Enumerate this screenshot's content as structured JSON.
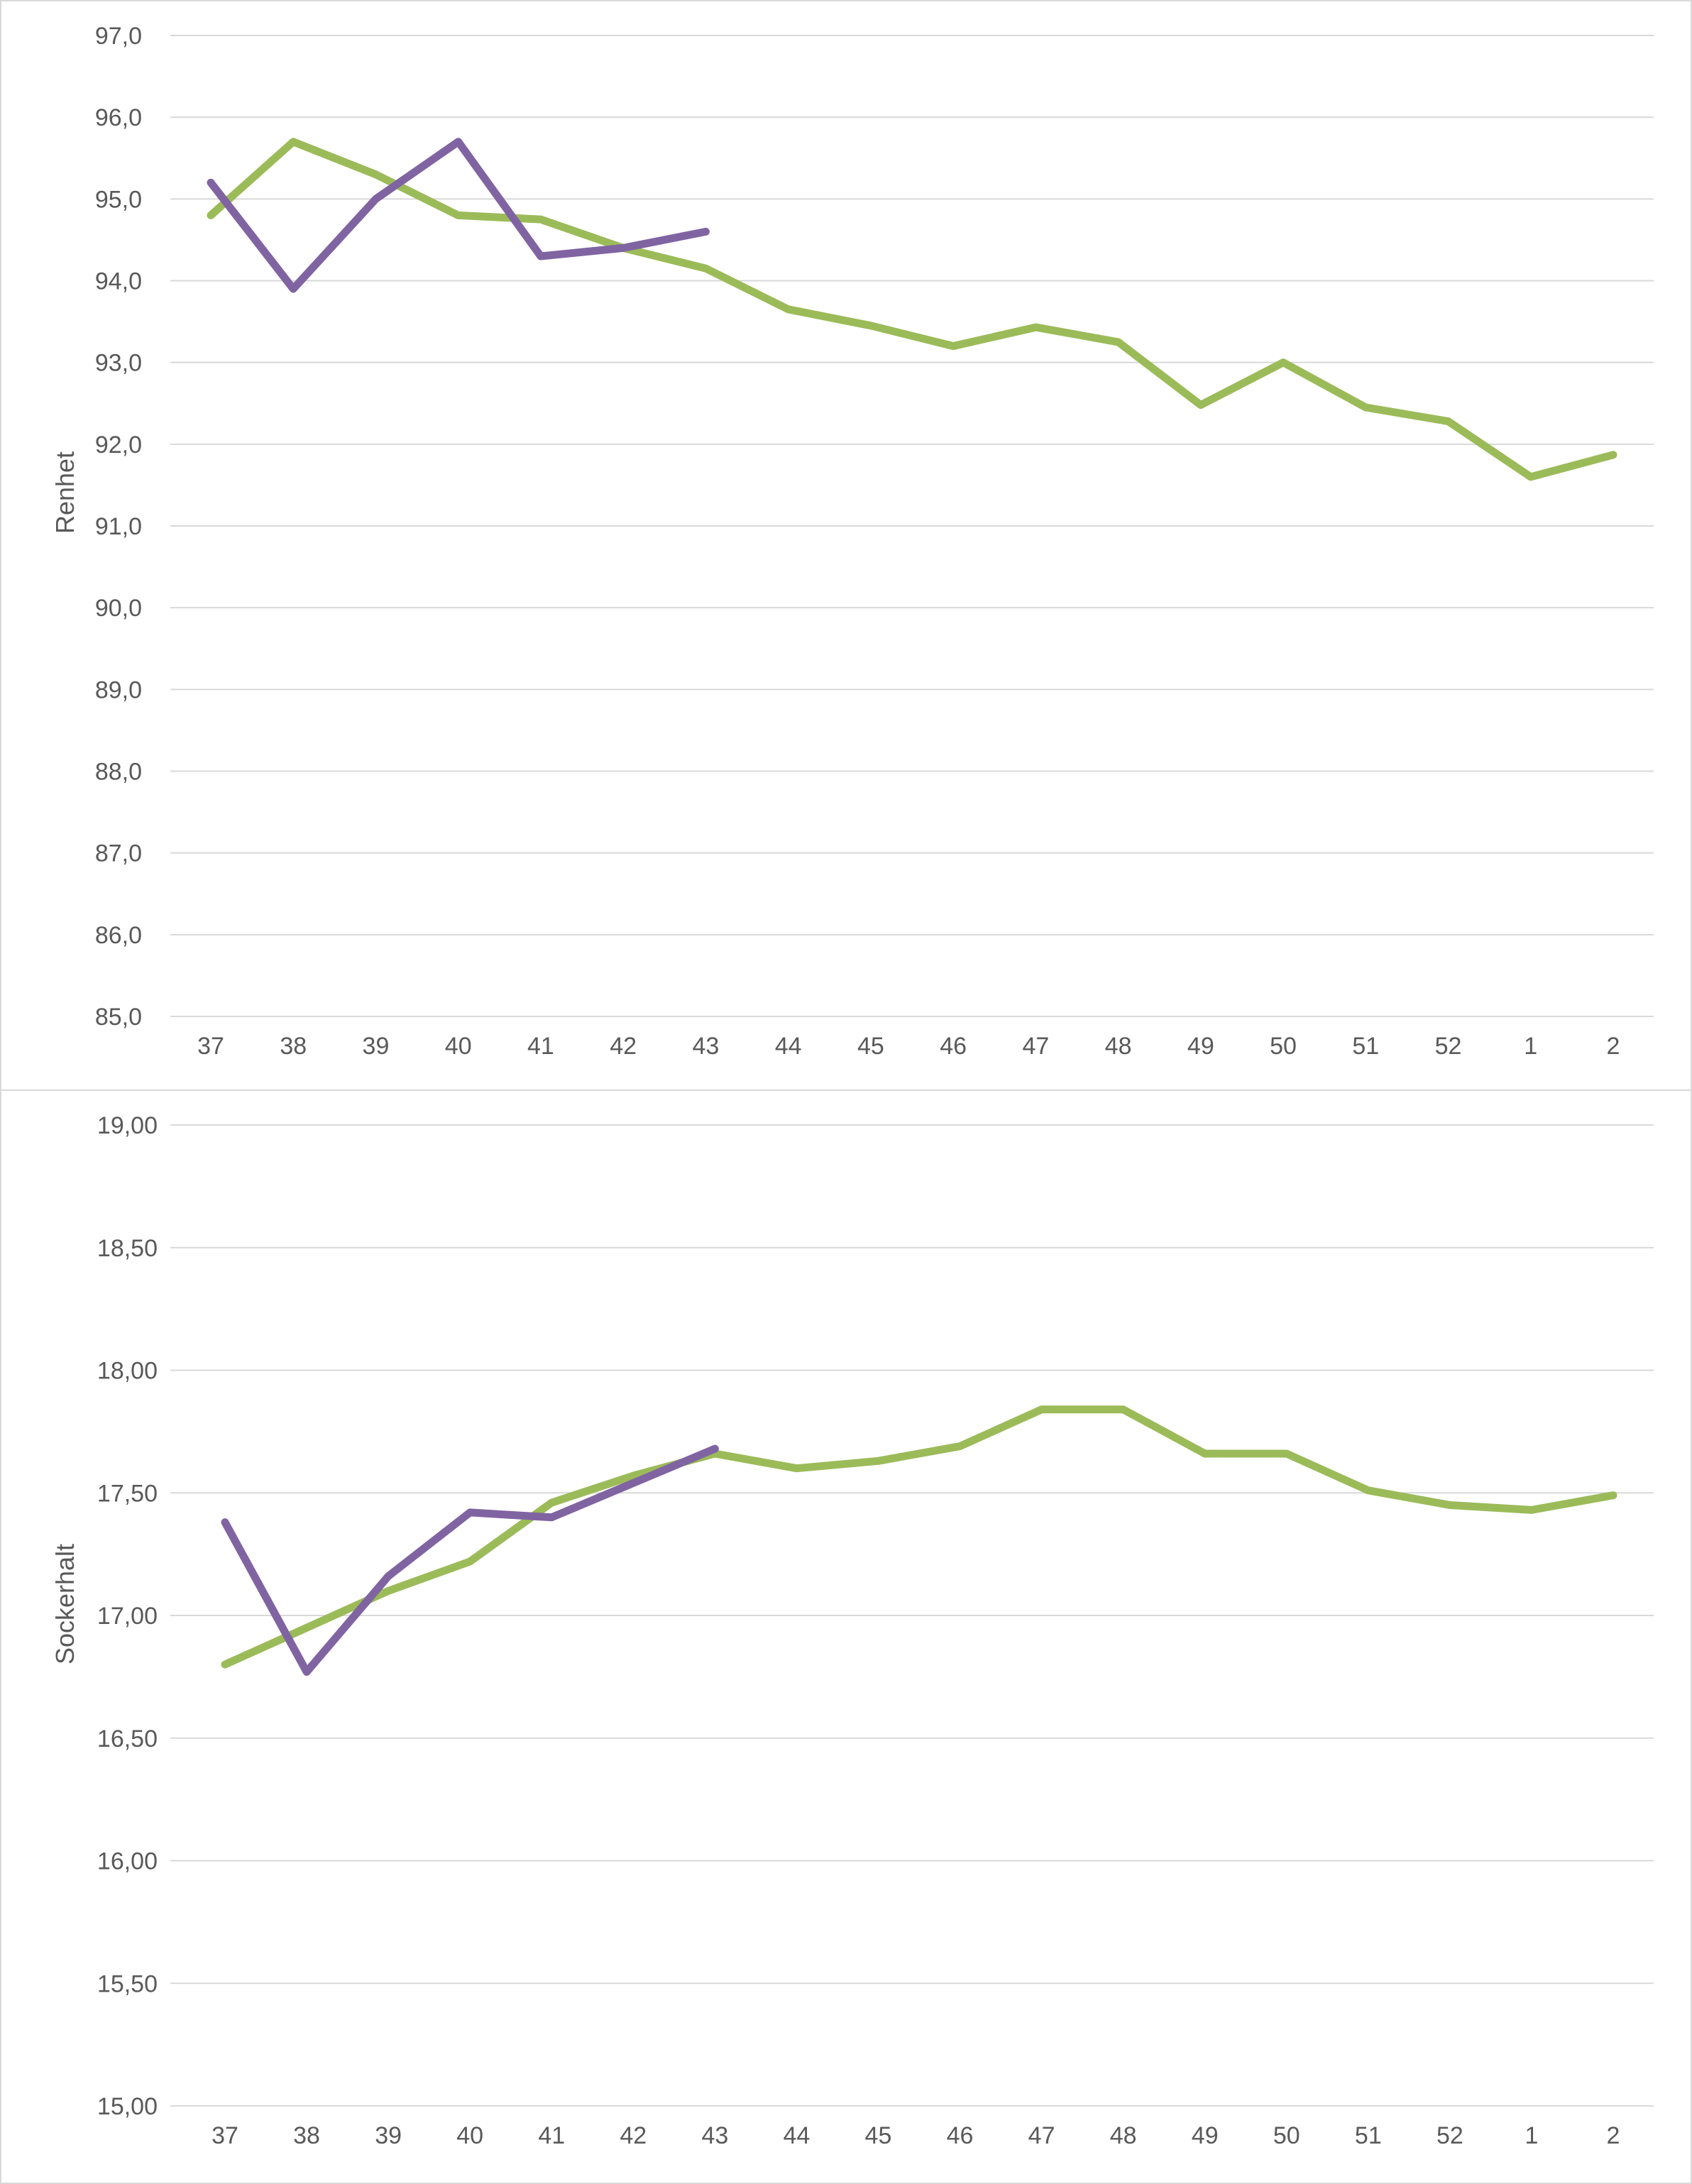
{
  "chart_data": [
    {
      "type": "line",
      "title": "",
      "xlabel": "",
      "ylabel": "Renhet",
      "ylim": [
        85.0,
        97.0
      ],
      "y_ticks": [
        "85,0",
        "86,0",
        "87,0",
        "88,0",
        "89,0",
        "90,0",
        "91,0",
        "92,0",
        "93,0",
        "94,0",
        "95,0",
        "96,0",
        "97,0"
      ],
      "categories": [
        "37",
        "38",
        "39",
        "40",
        "41",
        "42",
        "43",
        "44",
        "45",
        "46",
        "47",
        "48",
        "49",
        "50",
        "51",
        "52",
        "1",
        "2"
      ],
      "grid": true,
      "series": [
        {
          "name": "green",
          "color": "#9bbb59",
          "values": [
            94.8,
            95.7,
            95.3,
            94.8,
            94.75,
            94.4,
            94.15,
            93.65,
            93.45,
            93.2,
            93.43,
            93.25,
            92.48,
            93.0,
            92.45,
            92.28,
            91.6,
            91.87
          ]
        },
        {
          "name": "purple",
          "color": "#8064a2",
          "values": [
            95.2,
            93.9,
            95.0,
            95.7,
            94.3,
            94.4,
            94.6,
            null,
            null,
            null,
            null,
            null,
            null,
            null,
            null,
            null,
            null,
            null
          ]
        }
      ]
    },
    {
      "type": "line",
      "title": "",
      "xlabel": "",
      "ylabel": "Sockerhalt",
      "ylim": [
        15.0,
        19.0
      ],
      "y_ticks": [
        "15,00",
        "15,50",
        "16,00",
        "16,50",
        "17,00",
        "17,50",
        "18,00",
        "18,50",
        "19,00"
      ],
      "categories": [
        "37",
        "38",
        "39",
        "40",
        "41",
        "42",
        "43",
        "44",
        "45",
        "46",
        "47",
        "48",
        "49",
        "50",
        "51",
        "52",
        "1",
        "2"
      ],
      "grid": true,
      "series": [
        {
          "name": "green",
          "color": "#9bbb59",
          "values": [
            16.8,
            16.95,
            17.1,
            17.22,
            17.46,
            17.57,
            17.66,
            17.6,
            17.63,
            17.69,
            17.84,
            17.84,
            17.66,
            17.66,
            17.51,
            17.45,
            17.43,
            17.49
          ]
        },
        {
          "name": "purple",
          "color": "#8064a2",
          "values": [
            17.38,
            16.77,
            17.16,
            17.42,
            17.4,
            17.54,
            17.68,
            null,
            null,
            null,
            null,
            null,
            null,
            null,
            null,
            null,
            null,
            null
          ]
        }
      ]
    }
  ]
}
